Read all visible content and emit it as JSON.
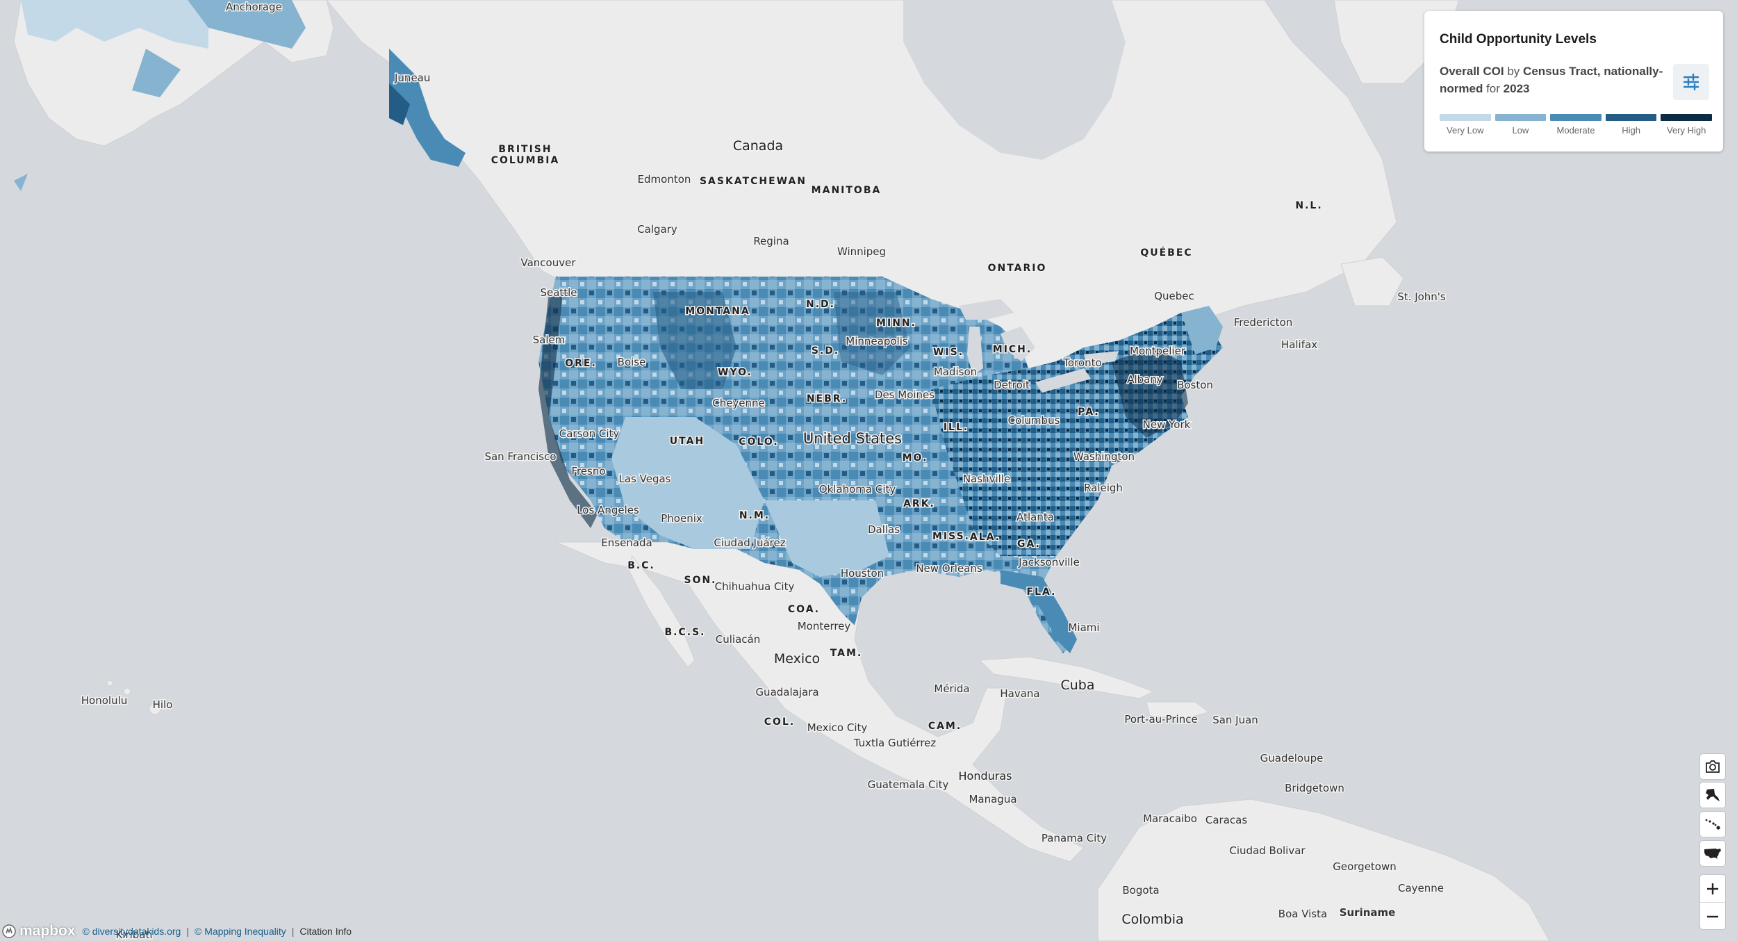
{
  "legend": {
    "title": "Child Opportunity Levels",
    "sub_metric": "Overall COI",
    "sub_by": "by",
    "sub_geo": "Census Tract, nationally-normed",
    "sub_for": "for",
    "sub_year": "2023",
    "filter_icon": "sliders-icon",
    "levels": [
      {
        "label": "Very Low",
        "color": "#c3d9e8"
      },
      {
        "label": "Low",
        "color": "#86b3d0"
      },
      {
        "label": "Moderate",
        "color": "#4a8bb5"
      },
      {
        "label": "High",
        "color": "#235c85"
      },
      {
        "label": "Very High",
        "color": "#0c2b45"
      }
    ]
  },
  "controls": {
    "screenshot_icon": "camera-icon",
    "alaska_icon": "alaska-icon",
    "hawaii_icon": "hawaii-icon",
    "conus_icon": "usa-icon",
    "zoom_in_icon": "plus-icon",
    "zoom_out_icon": "minus-icon"
  },
  "attribution": {
    "logo": "mapbox",
    "links": [
      "© diversitydatakids.org",
      "© Mapping Inequality",
      "Citation Info"
    ]
  },
  "labels": {
    "regions": [
      "BRITISH",
      "COLUMBIA",
      "SASKATCHEWAN",
      "MANITOBA",
      "ONTARIO",
      "QUÉBEC",
      "N.L.",
      "MONTANA",
      "N.D.",
      "MINN.",
      "S.D.",
      "WIS.",
      "MICH.",
      "WYO.",
      "ORE.",
      "NEBR.",
      "UTAH",
      "COLO.",
      "ILL.",
      "MO.",
      "PA.",
      "N.M.",
      "ARK.",
      "MISS.",
      "ALA.",
      "GA.",
      "FLA.",
      "B.C.",
      "SON.",
      "COA.",
      "B.C.S.",
      "TAM.",
      "COL.",
      "CAM."
    ],
    "cities": [
      "Anchorage",
      "Juneau",
      "Edmonton",
      "Calgary",
      "Regina",
      "Winnipeg",
      "Vancouver",
      "Seattle",
      "Salem",
      "Boise",
      "Minneapolis",
      "Madison",
      "Detroit",
      "Toronto",
      "Montpelier",
      "Albany",
      "Boston",
      "Quebec",
      "Fredericton",
      "Halifax",
      "St. John's",
      "Cheyenne",
      "Des Moines",
      "Columbus",
      "New York",
      "Carson City",
      "Washington",
      "San Francisco",
      "Fresno",
      "Las Vegas",
      "Nashville",
      "Raleigh",
      "Oklahoma City",
      "Los Angeles",
      "Phoenix",
      "Atlanta",
      "Dallas",
      "Ensenada",
      "Ciudad Juárez",
      "Jacksonville",
      "Houston",
      "New Orleans",
      "Chihuahua City",
      "Miami",
      "Monterrey",
      "Culiacán",
      "Havana",
      "Mérida",
      "Guadalajara",
      "Mexico City",
      "Port-au-Prince",
      "San Juan",
      "Tuxtla Gutiérrez",
      "Guadeloupe",
      "Bridgetown",
      "Honolulu",
      "Hilo",
      "Guatemala City",
      "Managua",
      "Maracaibo",
      "Caracas",
      "Panama City",
      "Ciudad Bolivar",
      "Georgetown",
      "Bogota",
      "Cayenne",
      "Boa Vista",
      "Suriname",
      "Kiribati"
    ],
    "countries": [
      "Canada",
      "United States",
      "Mexico",
      "Cuba",
      "Honduras",
      "Colombia"
    ]
  }
}
